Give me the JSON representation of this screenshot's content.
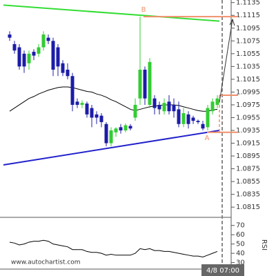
{
  "chart_data": {
    "type": "candlestick",
    "watermark": "www.autochartist.com",
    "categories": [
      null,
      null,
      null,
      null,
      null,
      null,
      null,
      null,
      null,
      null,
      null,
      null,
      null,
      null,
      null,
      null,
      null,
      null,
      null,
      null,
      null,
      null,
      null,
      null,
      null,
      null,
      null,
      null,
      null,
      null,
      null,
      null,
      null,
      null,
      null,
      null,
      null,
      null,
      null,
      null,
      null,
      null,
      null,
      null,
      "4/8 07:00"
    ],
    "open": [
      1.1085,
      1.107,
      1.1065,
      1.1055,
      1.104,
      1.1058,
      1.1055,
      1.1065,
      1.108,
      1.1075,
      1.1065,
      1.104,
      1.103,
      1.102,
      1.098,
      1.0975,
      1.0977,
      1.097,
      1.096,
      1.0958,
      1.0945,
      1.0915,
      1.0932,
      1.094,
      1.0935,
      1.0942,
      1.0955,
      1.0985,
      1.103,
      1.0975,
      1.0985,
      1.0975,
      1.0965,
      1.098,
      1.0975,
      1.0968,
      1.0945,
      1.096,
      1.0955,
      1.095,
      1.0945,
      1.094,
      1.0965,
      1.0975,
      null
    ],
    "close": [
      1.108,
      1.106,
      1.1035,
      1.1035,
      1.1055,
      1.1052,
      1.1065,
      1.1085,
      1.1075,
      1.103,
      1.1035,
      1.1025,
      1.102,
      1.0975,
      1.0975,
      1.0978,
      1.096,
      1.0955,
      1.0955,
      1.0948,
      1.0915,
      1.0935,
      1.0938,
      1.0935,
      1.0943,
      1.0938,
      1.0975,
      1.103,
      1.0985,
      1.1042,
      1.097,
      1.0968,
      1.0978,
      1.0965,
      1.0965,
      1.0945,
      1.0962,
      1.0945,
      1.095,
      1.0948,
      1.0938,
      1.097,
      1.098,
      1.0985,
      null
    ],
    "high": [
      1.109,
      1.1075,
      1.107,
      1.106,
      1.106,
      1.1062,
      1.107,
      1.109,
      1.1085,
      1.108,
      1.107,
      1.1045,
      1.104,
      1.1025,
      1.0985,
      1.0982,
      1.098,
      1.0975,
      1.0965,
      1.0962,
      1.0948,
      1.094,
      1.094,
      1.0945,
      1.0946,
      1.0945,
      1.0985,
      1.1113,
      1.1035,
      1.1048,
      1.099,
      1.098,
      1.0985,
      1.099,
      1.0985,
      1.098,
      1.097,
      1.0965,
      1.0958,
      1.0952,
      1.095,
      1.0975,
      1.0985,
      1.099,
      null
    ],
    "low": [
      1.1075,
      1.1055,
      1.103,
      1.1025,
      1.103,
      1.1045,
      1.105,
      1.106,
      1.107,
      1.102,
      1.102,
      1.102,
      1.1015,
      1.0965,
      1.097,
      1.097,
      1.0955,
      1.094,
      1.0945,
      1.094,
      1.091,
      1.091,
      1.0925,
      1.093,
      1.0932,
      1.0935,
      1.095,
      1.0975,
      1.0975,
      1.097,
      1.096,
      1.096,
      1.096,
      1.096,
      1.0955,
      1.094,
      1.094,
      1.0938,
      1.0945,
      1.0945,
      1.0935,
      1.0935,
      1.096,
      1.097,
      null
    ],
    "up_color": "#33cc33",
    "down_color": "#1c1ca8",
    "moving_average": {
      "color": "#000000",
      "values": [
        1.0965,
        1.097,
        1.0975,
        1.098,
        1.0985,
        1.0988,
        1.0992,
        1.0995,
        1.0998,
        1.1,
        1.1002,
        1.1003,
        1.1003,
        1.1002,
        1.1,
        1.0998,
        1.0996,
        1.0995,
        1.0992,
        1.099,
        1.0987,
        1.0983,
        1.098,
        1.0976,
        1.0972,
        1.0968,
        1.0966,
        1.0968,
        1.097,
        1.0972,
        1.0973,
        1.0974,
        1.0975,
        1.0975,
        1.0975,
        1.0974,
        1.0972,
        1.097,
        1.0968,
        1.0966,
        1.0965,
        1.0965,
        1.0967,
        1.0968,
        null
      ]
    },
    "trendlines": [
      {
        "color": "#33dd33",
        "values": [
          1.1131,
          1.1106
        ]
      },
      {
        "color": "#2222cc",
        "values": [
          1.0881,
          1.0935
        ]
      }
    ],
    "levels": [
      {
        "label": "B",
        "value": 1.1113,
        "color": "#f0906a"
      },
      {
        "label": "A",
        "value": 1.0932,
        "color": "#f0906a"
      }
    ],
    "target": {
      "value": 1.099,
      "color": "#f0906a"
    },
    "ylim": [
      1.0799,
      1.1139
    ],
    "yticks": [
      1.1135,
      1.1115,
      1.1095,
      1.1075,
      1.1055,
      1.1035,
      1.1015,
      1.0995,
      1.0975,
      1.0955,
      1.0935,
      1.0915,
      1.0895,
      1.0875,
      1.0855,
      1.0835,
      1.0815
    ],
    "rsi": {
      "label": "RSI",
      "color": "#000000",
      "values": [
        52,
        51,
        49,
        50,
        52,
        53,
        53,
        54,
        53,
        50,
        49,
        48,
        47,
        44,
        44,
        44,
        42,
        41,
        41,
        40,
        38,
        39,
        38,
        38,
        38,
        38,
        40,
        45,
        44,
        45,
        43,
        43,
        42,
        42,
        41,
        40,
        39,
        38,
        37,
        37,
        36,
        38,
        40,
        42,
        null
      ],
      "ylim": [
        23,
        75
      ],
      "yticks": [
        70,
        60,
        50,
        40,
        30
      ]
    }
  }
}
